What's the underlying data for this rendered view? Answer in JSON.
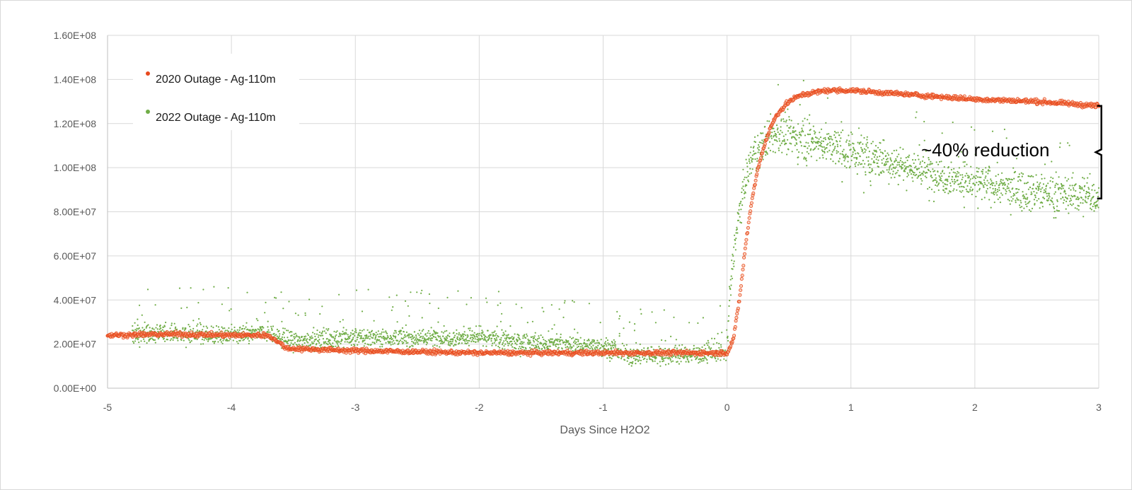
{
  "chart_data": {
    "type": "scatter",
    "title": "",
    "xlabel": "Days Since H2O2",
    "ylabel": "",
    "xlim": [
      -5,
      3
    ],
    "ylim": [
      0,
      160000000
    ],
    "x_ticks": [
      -5,
      -4,
      -3,
      -2,
      -1,
      0,
      1,
      2,
      3
    ],
    "x_tick_labels": [
      "-5",
      "-4",
      "-3",
      "-2",
      "-1",
      "0",
      "1",
      "2",
      "3"
    ],
    "y_ticks": [
      0,
      20000000,
      40000000,
      60000000,
      80000000,
      100000000,
      120000000,
      140000000,
      160000000
    ],
    "y_tick_labels": [
      "0.00E+00",
      "2.00E+07",
      "4.00E+07",
      "6.00E+07",
      "8.00E+07",
      "1.00E+08",
      "1.20E+08",
      "1.40E+08",
      "1.60E+08"
    ],
    "grid": true,
    "legend_position": "top-left",
    "series": [
      {
        "name": "2020 Outage - Ag-110m",
        "color": "#e8491d",
        "marker": "hollow-circle",
        "approx_trend": {
          "x": [
            -5,
            -4.5,
            -4,
            -3.7,
            -3.55,
            -3,
            -2,
            -1,
            -0.5,
            0,
            0.05,
            0.1,
            0.15,
            0.2,
            0.25,
            0.3,
            0.35,
            0.4,
            0.5,
            0.6,
            0.8,
            0.9,
            1,
            1.5,
            2,
            2.5,
            3
          ],
          "y": [
            24000000,
            24500000,
            24000000,
            24000000,
            18000000,
            17000000,
            16000000,
            16000000,
            16000000,
            16000000,
            22000000,
            40000000,
            65000000,
            85000000,
            100000000,
            110000000,
            118000000,
            124000000,
            130000000,
            133000000,
            135000000,
            135000000,
            135000000,
            133000000,
            131000000,
            130000000,
            128000000
          ]
        }
      },
      {
        "name": "2022 Outage - Ag-110m",
        "color": "#70ad47",
        "marker": "small-dot",
        "approx_trend": {
          "x": [
            -4.8,
            -4.5,
            -4,
            -3.7,
            -3.5,
            -3,
            -2.5,
            -2,
            -1.5,
            -1,
            -0.8,
            -0.5,
            0,
            0.02,
            0.05,
            0.1,
            0.15,
            0.2,
            0.3,
            0.4,
            0.5,
            0.7,
            1,
            1.5,
            2,
            2.5,
            3
          ],
          "y": [
            24000000,
            25000000,
            24000000,
            25000000,
            21000000,
            23000000,
            23000000,
            23000000,
            20000000,
            19000000,
            15000000,
            15000000,
            16000000,
            40000000,
            60000000,
            80000000,
            95000000,
            105000000,
            112000000,
            115000000,
            115000000,
            112000000,
            107000000,
            100000000,
            93000000,
            89000000,
            87000000
          ]
        }
      }
    ],
    "annotations": [
      {
        "text": "~40% reduction",
        "x": 2.55,
        "y": 108000000,
        "bracket_from": 128000000,
        "bracket_to": 86000000
      }
    ]
  }
}
